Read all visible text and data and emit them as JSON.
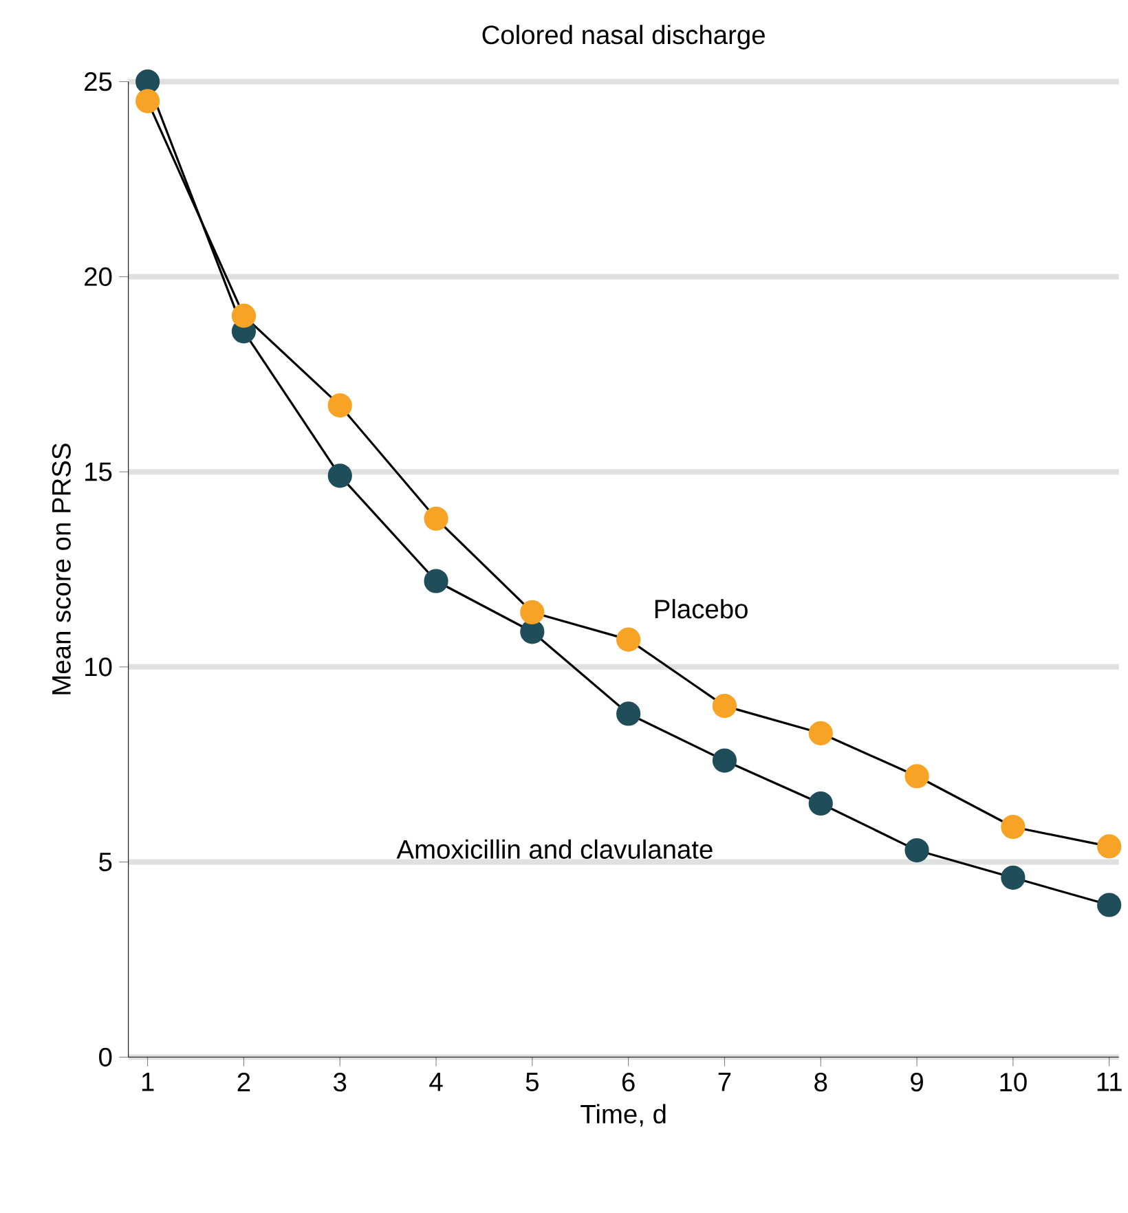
{
  "chart_data": {
    "type": "line",
    "title": "Colored nasal discharge",
    "xlabel": "Time, d",
    "ylabel": "Mean score on PRSS",
    "x": [
      1,
      2,
      3,
      4,
      5,
      6,
      7,
      8,
      9,
      10,
      11
    ],
    "series": [
      {
        "name": "Amoxicillin and clavulanate",
        "color": "#1f4e5a",
        "values": [
          25.0,
          18.6,
          14.9,
          12.2,
          10.9,
          8.8,
          7.6,
          6.5,
          5.3,
          4.6,
          3.9
        ]
      },
      {
        "name": "Placebo",
        "color": "#f7a325",
        "values": [
          24.5,
          19.0,
          16.7,
          13.8,
          11.4,
          10.7,
          9.0,
          8.3,
          7.2,
          5.9,
          5.4
        ]
      }
    ],
    "xlim": [
      0.8,
      11.1
    ],
    "ylim": [
      0,
      25
    ],
    "xticks": [
      1,
      2,
      3,
      4,
      5,
      6,
      7,
      8,
      9,
      10,
      11
    ],
    "yticks": [
      0,
      5,
      10,
      15,
      20,
      25
    ],
    "grid": "y",
    "legend": false,
    "marker": "circle",
    "line_style": "solid"
  }
}
